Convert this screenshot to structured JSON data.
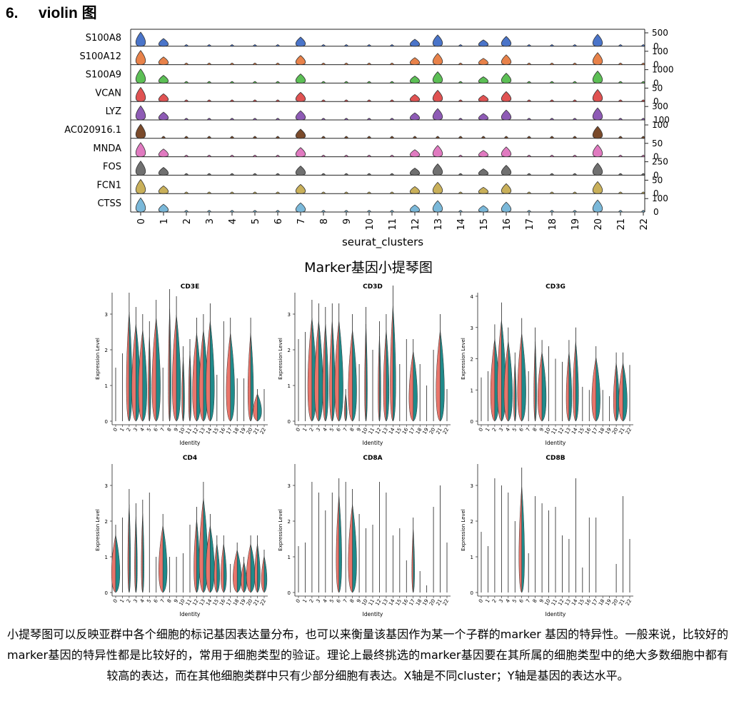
{
  "heading": {
    "number": "6.",
    "title": "violin 图"
  },
  "stacked_violin": {
    "genes": [
      "S100A8",
      "S100A12",
      "S100A9",
      "VCAN",
      "LYZ",
      "AC020916.1",
      "MNDA",
      "FOS",
      "FCN1",
      "CTSS"
    ],
    "colors": [
      "#4a74c9",
      "#e8824a",
      "#5cbf55",
      "#e05252",
      "#8e5bb5",
      "#7a4a2a",
      "#e07ac0",
      "#707070",
      "#c9b05a",
      "#7ab8d9"
    ],
    "right_ticks": [
      [
        "500",
        "0"
      ],
      [
        "100",
        "0"
      ],
      [
        "1000",
        "0"
      ],
      [
        "50",
        "0"
      ],
      [
        "300",
        "100"
      ],
      [
        "100",
        ""
      ],
      [
        "50",
        "0"
      ],
      [
        "250",
        "0"
      ],
      [
        "50",
        "0"
      ],
      [
        "100",
        "0"
      ]
    ],
    "clusters": [
      "0",
      "1",
      "2",
      "3",
      "4",
      "5",
      "6",
      "7",
      "8",
      "9",
      "10",
      "11",
      "12",
      "13",
      "14",
      "15",
      "16",
      "17",
      "18",
      "19",
      "20",
      "21",
      "22"
    ],
    "xlabel": "seurat_clusters",
    "title": "Marker基因小提琴图"
  },
  "chart_data": [
    {
      "type": "violin-split",
      "title": "CD3E",
      "xlabel": "Identity",
      "ylabel": "Expression Level",
      "ylim": [
        0,
        3.5
      ],
      "yticks": [
        "0",
        "1",
        "2",
        "3"
      ],
      "categories": [
        "0",
        "1",
        "2",
        "3",
        "4",
        "5",
        "6",
        "7",
        "8",
        "9",
        "10",
        "11",
        "12",
        "13",
        "14",
        "15",
        "16",
        "17",
        "18",
        "19",
        "20",
        "21",
        "22"
      ],
      "max_values": [
        1.5,
        1.9,
        3.6,
        3.2,
        3.0,
        2.8,
        3.4,
        1.5,
        3.7,
        3.5,
        2.1,
        2.3,
        2.9,
        3.0,
        3.3,
        1.3,
        2.8,
        2.9,
        1.2,
        1.2,
        2.9,
        0.9,
        0.9
      ],
      "violin_width": [
        0,
        0,
        2,
        3,
        3,
        1,
        3,
        0,
        1,
        3,
        1,
        1,
        3,
        3,
        3,
        0,
        0,
        3,
        0,
        0,
        2,
        3,
        0
      ]
    },
    {
      "type": "violin-split",
      "title": "CD3D",
      "xlabel": "Identity",
      "ylabel": "Expression Level",
      "ylim": [
        0,
        3.5
      ],
      "yticks": [
        "0",
        "1",
        "2",
        "3"
      ],
      "categories": [
        "0",
        "1",
        "2",
        "3",
        "4",
        "5",
        "6",
        "7",
        "8",
        "9",
        "10",
        "11",
        "12",
        "13",
        "14",
        "15",
        "16",
        "17",
        "18",
        "19",
        "20",
        "21",
        "22"
      ],
      "max_values": [
        2.3,
        2.5,
        3.4,
        3.3,
        3.2,
        3.3,
        3.3,
        0.9,
        3.0,
        1.6,
        3.2,
        2.0,
        2.8,
        3.0,
        3.8,
        1.6,
        2.3,
        2.3,
        1.6,
        1.0,
        2.0,
        3.0,
        0.9
      ],
      "violin_width": [
        0,
        0,
        3,
        3,
        2,
        2,
        3,
        1,
        3,
        0,
        1,
        0,
        1,
        2,
        2,
        0,
        0,
        3,
        0,
        0,
        0,
        3,
        0
      ]
    },
    {
      "type": "violin-split",
      "title": "CD3G",
      "xlabel": "Identity",
      "ylabel": "Expression Level",
      "ylim": [
        0,
        4
      ],
      "yticks": [
        "0",
        "1",
        "2",
        "3",
        "4"
      ],
      "categories": [
        "0",
        "1",
        "2",
        "3",
        "4",
        "5",
        "6",
        "7",
        "8",
        "9",
        "10",
        "11",
        "12",
        "13",
        "14",
        "15",
        "16",
        "17",
        "18",
        "19",
        "20",
        "21",
        "22"
      ],
      "max_values": [
        1.4,
        1.6,
        3.1,
        3.8,
        3.0,
        2.2,
        3.3,
        1.6,
        3.0,
        2.6,
        2.4,
        2.0,
        1.9,
        2.6,
        3.0,
        1.1,
        1.0,
        2.4,
        1.0,
        0.8,
        2.2,
        2.2,
        1.8
      ],
      "violin_width": [
        0,
        0,
        3,
        3,
        3,
        1,
        3,
        0,
        1,
        3,
        0,
        0,
        0,
        2,
        2,
        0,
        0,
        3,
        0,
        0,
        2,
        3,
        0
      ]
    },
    {
      "type": "violin-split",
      "title": "CD4",
      "xlabel": "Identity",
      "ylabel": "Expression Level",
      "ylim": [
        0,
        3.5
      ],
      "yticks": [
        "0",
        "1",
        "2",
        "3"
      ],
      "categories": [
        "0",
        "1",
        "2",
        "3",
        "4",
        "5",
        "6",
        "7",
        "8",
        "9",
        "10",
        "11",
        "12",
        "13",
        "14",
        "15",
        "16",
        "17",
        "18",
        "19",
        "20",
        "21",
        "22"
      ],
      "max_values": [
        1.9,
        2.1,
        2.9,
        2.5,
        2.6,
        2.8,
        1.0,
        2.2,
        1.0,
        1.0,
        1.1,
        1.9,
        2.4,
        3.1,
        2.2,
        1.6,
        1.6,
        0.8,
        1.4,
        1.0,
        1.6,
        1.6,
        1.2
      ],
      "violin_width": [
        3,
        0,
        1,
        1,
        1,
        0,
        0,
        3,
        0,
        0,
        0,
        0,
        2,
        3,
        3,
        2,
        2,
        0,
        3,
        2,
        3,
        2,
        2
      ]
    },
    {
      "type": "violin-split",
      "title": "CD8A",
      "xlabel": "Identity",
      "ylabel": "Expression Level",
      "ylim": [
        0,
        3.5
      ],
      "yticks": [
        "0",
        "1",
        "2",
        "3"
      ],
      "categories": [
        "0",
        "1",
        "2",
        "3",
        "4",
        "5",
        "6",
        "7",
        "8",
        "9",
        "10",
        "11",
        "12",
        "13",
        "14",
        "15",
        "16",
        "17",
        "18",
        "19",
        "20",
        "21",
        "22"
      ],
      "max_values": [
        1.3,
        1.4,
        3.1,
        2.8,
        2.3,
        2.8,
        3.2,
        3.1,
        2.9,
        2.2,
        1.8,
        1.9,
        3.1,
        2.8,
        1.6,
        1.8,
        0.9,
        2.1,
        0.6,
        0.2,
        2.4,
        3.0,
        1.4
      ],
      "violin_width": [
        0,
        0,
        0,
        0,
        0,
        0,
        2,
        0,
        3,
        0,
        0,
        0,
        0,
        0,
        0,
        0,
        0,
        1,
        0,
        0,
        0,
        0,
        0
      ]
    },
    {
      "type": "violin-split",
      "title": "CD8B",
      "xlabel": "Identity",
      "ylabel": "Expression Level",
      "ylim": [
        0,
        3.5
      ],
      "yticks": [
        "0",
        "1",
        "2",
        "3"
      ],
      "categories": [
        "0",
        "1",
        "2",
        "3",
        "4",
        "5",
        "6",
        "7",
        "8",
        "9",
        "10",
        "11",
        "12",
        "13",
        "14",
        "15",
        "16",
        "17",
        "18",
        "19",
        "20",
        "21",
        "22"
      ],
      "max_values": [
        1.7,
        1.3,
        3.2,
        3.0,
        2.8,
        2.0,
        3.5,
        1.1,
        2.7,
        2.5,
        2.3,
        2.4,
        1.6,
        1.5,
        3.2,
        0.7,
        2.1,
        2.1,
        0,
        0,
        0.8,
        2.7,
        1.5
      ],
      "violin_width": [
        0,
        0,
        0,
        0,
        0,
        0,
        2,
        0,
        0,
        0,
        0,
        0,
        0,
        0,
        0,
        0,
        0,
        0,
        0,
        0,
        0,
        0,
        0
      ]
    }
  ],
  "caption": "小提琴图可以反映亚群中各个细胞的标记基因表达量分布，也可以来衡量该基因作为某一个子群的marker 基因的特异性。一般来说，比较好的marker基因的特异性都是比较好的，常用于细胞类型的验证。理论上最终挑选的marker基因要在其所属的细胞类型中的绝大多数细胞中都有较高的表达，而在其他细胞类群中只有少部分细胞有表达。X轴是不同cluster；Y轴是基因的表达水平。"
}
